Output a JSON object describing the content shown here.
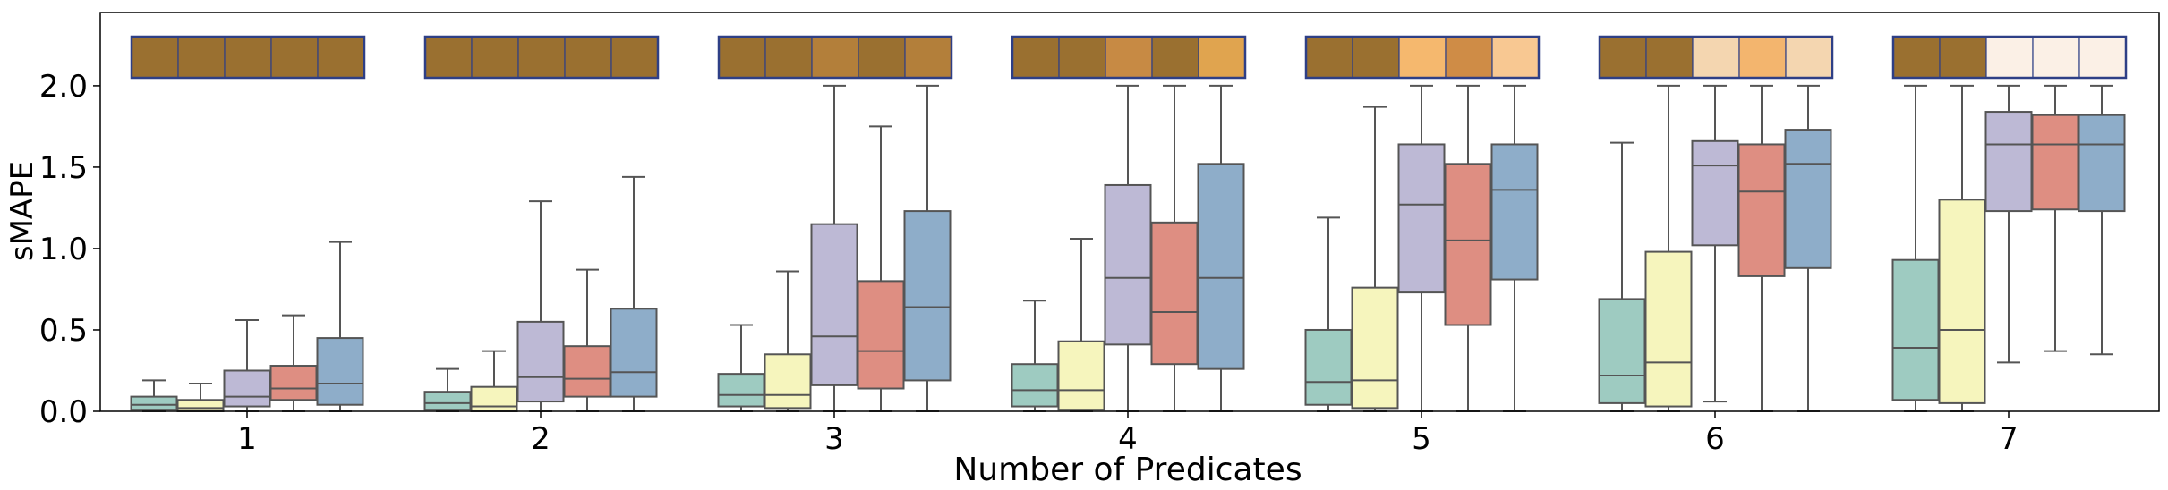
{
  "chart_data": {
    "type": "box",
    "title": "",
    "xlabel": "Number of Predicates",
    "ylabel": "sMAPE",
    "ylim": [
      0,
      2.45
    ],
    "yticks": [
      0.0,
      0.5,
      1.0,
      1.5,
      2.0
    ],
    "ytick_labels": [
      "0.0",
      "0.5",
      "1.0",
      "1.5",
      "2.0"
    ],
    "categories": [
      "1",
      "2",
      "3",
      "4",
      "5",
      "6",
      "7"
    ],
    "series_colors": [
      "#9ecbc1",
      "#f6f5bd",
      "#bdb9d5",
      "#de8e82",
      "#8eadc9"
    ],
    "box_edge_color": "#555555",
    "heat_border_color": "#2e3f86",
    "groups": [
      {
        "boxes": [
          {
            "whislo": 0.0,
            "q1": 0.01,
            "med": 0.04,
            "q3": 0.09,
            "whishi": 0.19
          },
          {
            "whislo": 0.0,
            "q1": 0.0,
            "med": 0.02,
            "q3": 0.07,
            "whishi": 0.17
          },
          {
            "whislo": 0.0,
            "q1": 0.03,
            "med": 0.09,
            "q3": 0.25,
            "whishi": 0.56
          },
          {
            "whislo": 0.0,
            "q1": 0.07,
            "med": 0.14,
            "q3": 0.28,
            "whishi": 0.59
          },
          {
            "whislo": 0.0,
            "q1": 0.04,
            "med": 0.17,
            "q3": 0.45,
            "whishi": 1.04
          }
        ],
        "heat_colors": [
          "#9a7030",
          "#9a7030",
          "#9a7030",
          "#9a7030",
          "#9a7030"
        ]
      },
      {
        "boxes": [
          {
            "whislo": 0.0,
            "q1": 0.01,
            "med": 0.05,
            "q3": 0.12,
            "whishi": 0.26
          },
          {
            "whislo": 0.0,
            "q1": 0.0,
            "med": 0.03,
            "q3": 0.15,
            "whishi": 0.37
          },
          {
            "whislo": 0.0,
            "q1": 0.06,
            "med": 0.21,
            "q3": 0.55,
            "whishi": 1.29
          },
          {
            "whislo": 0.0,
            "q1": 0.09,
            "med": 0.2,
            "q3": 0.4,
            "whishi": 0.87
          },
          {
            "whislo": 0.0,
            "q1": 0.09,
            "med": 0.24,
            "q3": 0.63,
            "whishi": 1.44
          }
        ],
        "heat_colors": [
          "#9a7030",
          "#9a7030",
          "#9a7030",
          "#9a7030",
          "#9a7030"
        ]
      },
      {
        "boxes": [
          {
            "whislo": 0.0,
            "q1": 0.03,
            "med": 0.1,
            "q3": 0.23,
            "whishi": 0.53
          },
          {
            "whislo": 0.0,
            "q1": 0.02,
            "med": 0.1,
            "q3": 0.35,
            "whishi": 0.86
          },
          {
            "whislo": 0.0,
            "q1": 0.16,
            "med": 0.46,
            "q3": 1.15,
            "whishi": 2.0
          },
          {
            "whislo": 0.0,
            "q1": 0.14,
            "med": 0.37,
            "q3": 0.8,
            "whishi": 1.75
          },
          {
            "whislo": 0.0,
            "q1": 0.19,
            "med": 0.64,
            "q3": 1.23,
            "whishi": 2.0
          }
        ],
        "heat_colors": [
          "#9a7030",
          "#9a7030",
          "#b37f3a",
          "#9a7030",
          "#b37f3a"
        ]
      },
      {
        "boxes": [
          {
            "whislo": 0.0,
            "q1": 0.03,
            "med": 0.13,
            "q3": 0.29,
            "whishi": 0.68
          },
          {
            "whislo": 0.0,
            "q1": 0.01,
            "med": 0.13,
            "q3": 0.43,
            "whishi": 1.06
          },
          {
            "whislo": 0.0,
            "q1": 0.41,
            "med": 0.82,
            "q3": 1.39,
            "whishi": 2.0
          },
          {
            "whislo": 0.0,
            "q1": 0.29,
            "med": 0.61,
            "q3": 1.16,
            "whishi": 2.0
          },
          {
            "whislo": 0.0,
            "q1": 0.26,
            "med": 0.82,
            "q3": 1.52,
            "whishi": 2.0
          }
        ],
        "heat_colors": [
          "#9a7030",
          "#9a7030",
          "#c78a44",
          "#9a7030",
          "#e0a44f"
        ]
      },
      {
        "boxes": [
          {
            "whislo": 0.0,
            "q1": 0.04,
            "med": 0.18,
            "q3": 0.5,
            "whishi": 1.19
          },
          {
            "whislo": 0.0,
            "q1": 0.02,
            "med": 0.19,
            "q3": 0.76,
            "whishi": 1.87
          },
          {
            "whislo": 0.0,
            "q1": 0.73,
            "med": 1.27,
            "q3": 1.64,
            "whishi": 2.0
          },
          {
            "whislo": 0.0,
            "q1": 0.53,
            "med": 1.05,
            "q3": 1.52,
            "whishi": 2.0
          },
          {
            "whislo": 0.0,
            "q1": 0.81,
            "med": 1.36,
            "q3": 1.64,
            "whishi": 2.0
          }
        ],
        "heat_colors": [
          "#9a7030",
          "#9a7030",
          "#f5b86e",
          "#cf8c46",
          "#f8c892"
        ]
      },
      {
        "boxes": [
          {
            "whislo": 0.0,
            "q1": 0.05,
            "med": 0.22,
            "q3": 0.69,
            "whishi": 1.65
          },
          {
            "whislo": 0.0,
            "q1": 0.03,
            "med": 0.3,
            "q3": 0.98,
            "whishi": 2.0
          },
          {
            "whislo": 0.06,
            "q1": 1.02,
            "med": 1.51,
            "q3": 1.66,
            "whishi": 2.0
          },
          {
            "whislo": 0.0,
            "q1": 0.83,
            "med": 1.35,
            "q3": 1.64,
            "whishi": 2.0
          },
          {
            "whislo": 0.0,
            "q1": 0.88,
            "med": 1.52,
            "q3": 1.73,
            "whishi": 2.0
          }
        ],
        "heat_colors": [
          "#9a7030",
          "#9a7030",
          "#f4d6b0",
          "#f3b56e",
          "#f4d6b0"
        ]
      },
      {
        "boxes": [
          {
            "whislo": 0.0,
            "q1": 0.07,
            "med": 0.39,
            "q3": 0.93,
            "whishi": 2.0
          },
          {
            "whislo": 0.0,
            "q1": 0.05,
            "med": 0.5,
            "q3": 1.3,
            "whishi": 2.0
          },
          {
            "whislo": 0.3,
            "q1": 1.23,
            "med": 1.64,
            "q3": 1.84,
            "whishi": 2.0
          },
          {
            "whislo": 0.37,
            "q1": 1.24,
            "med": 1.64,
            "q3": 1.82,
            "whishi": 2.0
          },
          {
            "whislo": 0.35,
            "q1": 1.23,
            "med": 1.64,
            "q3": 1.82,
            "whishi": 2.0
          }
        ],
        "heat_colors": [
          "#9a7030",
          "#9a7030",
          "#fbf0e6",
          "#fbf0e6",
          "#fbf0e6"
        ]
      }
    ]
  }
}
